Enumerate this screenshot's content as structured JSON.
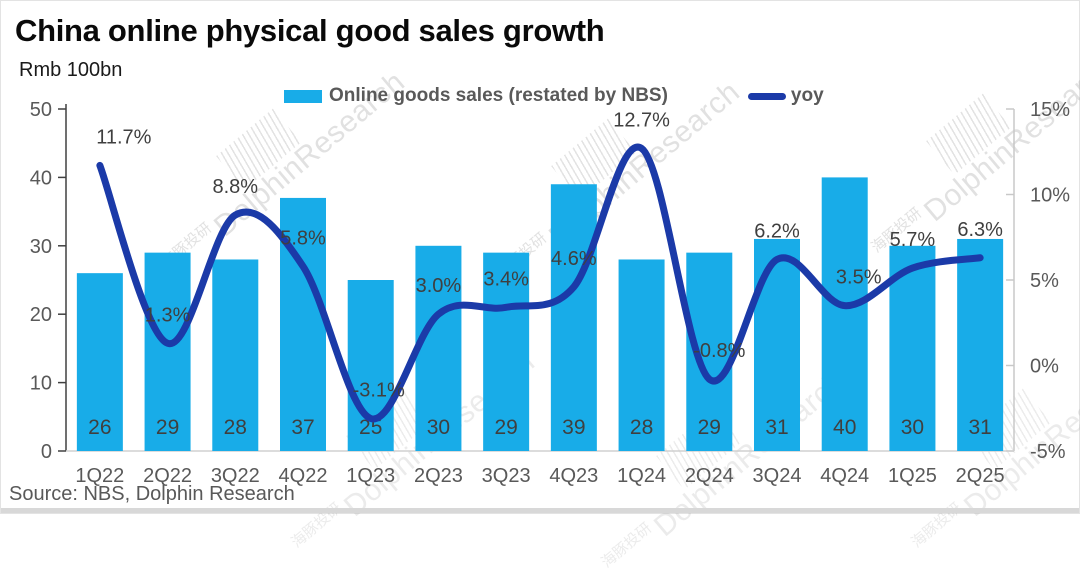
{
  "title": "China online physical good sales growth",
  "unit_label": "Rmb 100bn",
  "source": "Source: NBS, Dolphin Research",
  "watermark": {
    "cn": "海豚投研",
    "en": "DolphinResearch"
  },
  "legend": [
    {
      "label": "Online goods sales (restated by NBS)",
      "type": "bar",
      "color": "#18ACE8"
    },
    {
      "label": "yoy",
      "type": "line",
      "color": "#1B3AA8"
    }
  ],
  "chart_data": {
    "type": "bar+line",
    "title": "China online physical good sales growth",
    "unit": "Rmb 100bn",
    "categories": [
      "1Q22",
      "2Q22",
      "3Q22",
      "4Q22",
      "1Q23",
      "2Q23",
      "3Q23",
      "4Q23",
      "1Q24",
      "2Q24",
      "3Q24",
      "4Q24",
      "1Q25",
      "2Q25"
    ],
    "series": [
      {
        "name": "Online goods sales (restated by NBS)",
        "type": "bar",
        "axis": "left",
        "color": "#18ACE8",
        "values": [
          26,
          29,
          28,
          37,
          25,
          30,
          29,
          39,
          28,
          29,
          31,
          40,
          30,
          31
        ]
      },
      {
        "name": "yoy",
        "type": "line",
        "axis": "right",
        "color": "#1B3AA8",
        "values": [
          11.7,
          1.3,
          8.8,
          5.8,
          -3.1,
          3.0,
          3.4,
          4.6,
          12.7,
          -0.8,
          6.2,
          3.5,
          5.7,
          6.3
        ],
        "labels": [
          "11.7%",
          "1.3%",
          "8.8%",
          "5.8%",
          "-3.1%",
          "3.0%",
          "3.4%",
          "4.6%",
          "12.7%",
          "-0.8%",
          "6.2%",
          "3.5%",
          "5.7%",
          "6.3%"
        ]
      }
    ],
    "left_axis": {
      "min": 0,
      "max": 50,
      "ticks": [
        0,
        10,
        20,
        30,
        40,
        50
      ]
    },
    "right_axis": {
      "min": -5,
      "max": 15,
      "ticks": [
        -5,
        0,
        5,
        10,
        15
      ],
      "tick_labels": [
        "-5%",
        "0%",
        "5%",
        "10%",
        "15%"
      ]
    },
    "legend_position": "top",
    "grid": false
  },
  "colors": {
    "bar": "#18ACE8",
    "line": "#1B3AA8",
    "axis_text": "#595959",
    "data_label": "#3f3f3f",
    "left_axis_line": "#404040",
    "right_axis_line": "#c8c8c8",
    "baseline": "#d0d0d0"
  }
}
